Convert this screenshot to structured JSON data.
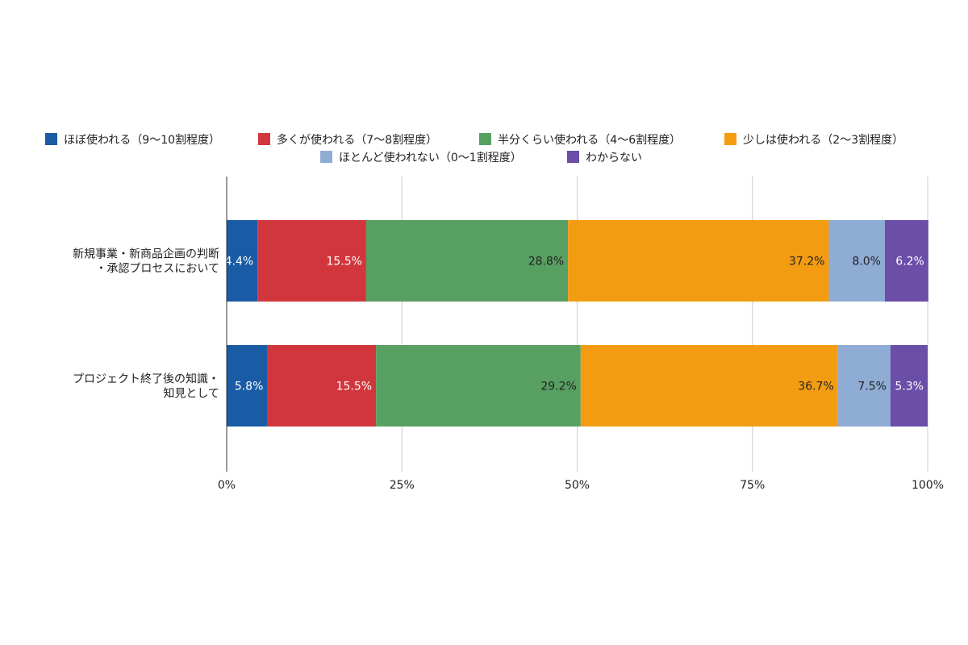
{
  "chart_data": {
    "type": "bar",
    "orientation": "horizontal",
    "stacked": "percent",
    "categories": [
      [
        "新規事業・新商品企画の判断",
        "・承認プロセスにおいて"
      ],
      [
        "プロジェクト終了後の知識・",
        "知見として"
      ]
    ],
    "series": [
      {
        "name": "ほぼ使われる（9〜10割程度）",
        "color": "#1a5ba6",
        "label_color": "#ffffff",
        "values": [
          4.4,
          5.8
        ],
        "labels": [
          "4.4%",
          "5.8%"
        ]
      },
      {
        "name": "多くが使われる（7〜8割程度）",
        "color": "#d2363d",
        "label_color": "#ffffff",
        "values": [
          15.5,
          15.5
        ],
        "labels": [
          "15.5%",
          "15.5%"
        ]
      },
      {
        "name": "半分くらい使われる（4〜6割程度）",
        "color": "#58a062",
        "label_color": "#222222",
        "values": [
          28.8,
          29.2
        ],
        "labels": [
          "28.8%",
          "29.2%"
        ]
      },
      {
        "name": "少しは使われる（2〜3割程度）",
        "color": "#f39c12",
        "label_color": "#222222",
        "values": [
          37.2,
          36.7
        ],
        "labels": [
          "37.2%",
          "36.7%"
        ]
      },
      {
        "name": "ほとんど使われない（0〜1割程度）",
        "color": "#8facd4",
        "label_color": "#222222",
        "values": [
          8.0,
          7.5
        ],
        "labels": [
          "8.0%",
          "7.5%"
        ]
      },
      {
        "name": "わからない",
        "color": "#6a4ea8",
        "label_color": "#ffffff",
        "values": [
          6.2,
          5.3
        ],
        "labels": [
          "6.2%",
          "5.3%"
        ]
      }
    ],
    "xlim": [
      0,
      100
    ],
    "xticks": [
      0,
      25,
      50,
      75,
      100
    ],
    "xtick_labels": [
      "0%",
      "25%",
      "50%",
      "75%",
      "100%"
    ],
    "grid": true,
    "legend_position": "top-center",
    "colors": {
      "grid": "#cccccc",
      "axis": "#333333",
      "text": "#222222"
    }
  }
}
